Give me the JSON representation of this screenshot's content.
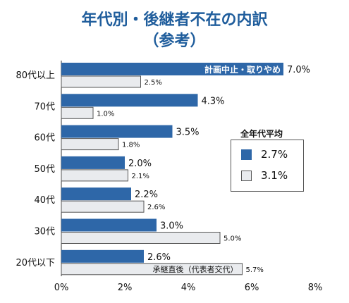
{
  "title_line1": "年代別・後継者不在の内訳",
  "title_line2": "（参考）",
  "chart_data": {
    "type": "bar",
    "orientation": "horizontal",
    "categories": [
      "80代以上",
      "70代",
      "60代",
      "50代",
      "40代",
      "30代",
      "20代以下"
    ],
    "series": [
      {
        "values": [
          7.0,
          4.3,
          3.5,
          2.0,
          2.2,
          3.0,
          2.6
        ],
        "labels": [
          "7.0%",
          "4.3%",
          "3.5%",
          "2.0%",
          "2.2%",
          "3.0%",
          "2.6%"
        ],
        "color": "#2e67a8"
      },
      {
        "values": [
          2.5,
          1.0,
          1.8,
          2.1,
          2.6,
          5.0,
          5.7
        ],
        "labels": [
          "2.5%",
          "1.0%",
          "1.8%",
          "2.1%",
          "2.6%",
          "5.0%",
          "5.7%"
        ],
        "color": "#e9ebee"
      }
    ],
    "xlim": [
      0,
      8
    ],
    "xticks": [
      "0%",
      "2%",
      "4%",
      "6%",
      "8%"
    ],
    "annotations": {
      "top_bar": "計画中止・取りやめ",
      "bottom_bar": "承継直後（代表者交代）"
    },
    "legend": {
      "title": "全年代平均",
      "entries": [
        "2.7%",
        "3.1%"
      ],
      "placement": "right"
    }
  }
}
